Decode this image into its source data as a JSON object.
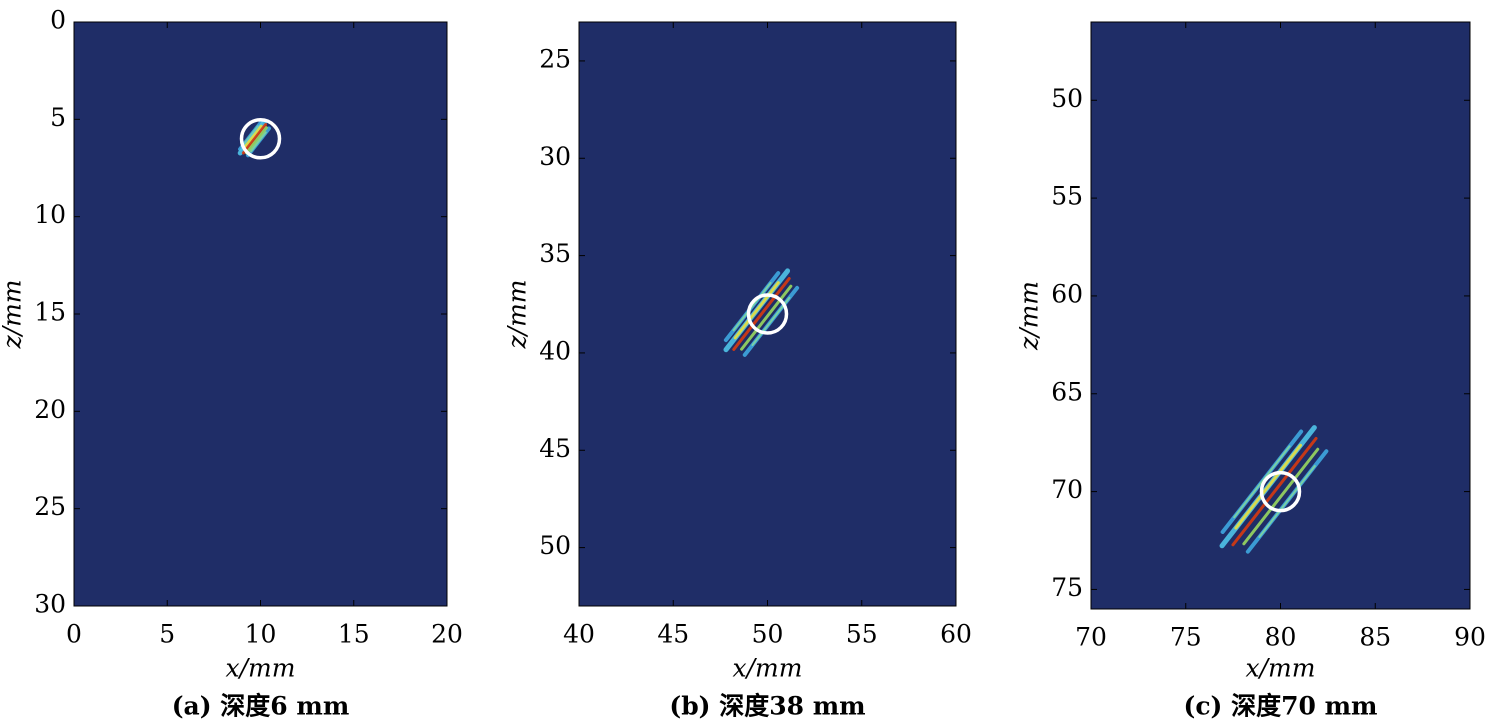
{
  "chart_data": [
    {
      "type": "heatmap",
      "background_color": "#1f2d67",
      "xlabel": "x/mm",
      "ylabel": "z/mm",
      "caption": "(a) 深度6 mm",
      "xlim": [
        0,
        20
      ],
      "xticks": [
        0,
        5,
        10,
        15,
        20
      ],
      "ylim": [
        0,
        30
      ],
      "yticks": [
        0,
        5,
        10,
        15,
        20,
        25,
        30
      ],
      "y_inverted": true,
      "marker": {
        "x": 10,
        "z": 6,
        "color": "#ffffff"
      }
    },
    {
      "type": "heatmap",
      "background_color": "#1f2d67",
      "xlabel": "x/mm",
      "ylabel": "z/mm",
      "caption": "(b) 深度38 mm",
      "xlim": [
        40,
        60
      ],
      "xticks": [
        40,
        45,
        50,
        55,
        60
      ],
      "ylim": [
        23,
        53
      ],
      "yticks": [
        25,
        30,
        35,
        40,
        45,
        50
      ],
      "y_inverted": true,
      "marker": {
        "x": 50,
        "z": 38,
        "color": "#ffffff"
      }
    },
    {
      "type": "heatmap",
      "background_color": "#1f2d67",
      "xlabel": "x/mm",
      "ylabel": "z/mm",
      "caption": "(c) 深度70 mm",
      "xlim": [
        70,
        90
      ],
      "xticks": [
        70,
        75,
        80,
        85,
        90
      ],
      "ylim": [
        46,
        76
      ],
      "yticks": [
        50,
        55,
        60,
        65,
        70,
        75
      ],
      "y_inverted": true,
      "marker": {
        "x": 80,
        "z": 70,
        "color": "#ffffff"
      }
    }
  ]
}
